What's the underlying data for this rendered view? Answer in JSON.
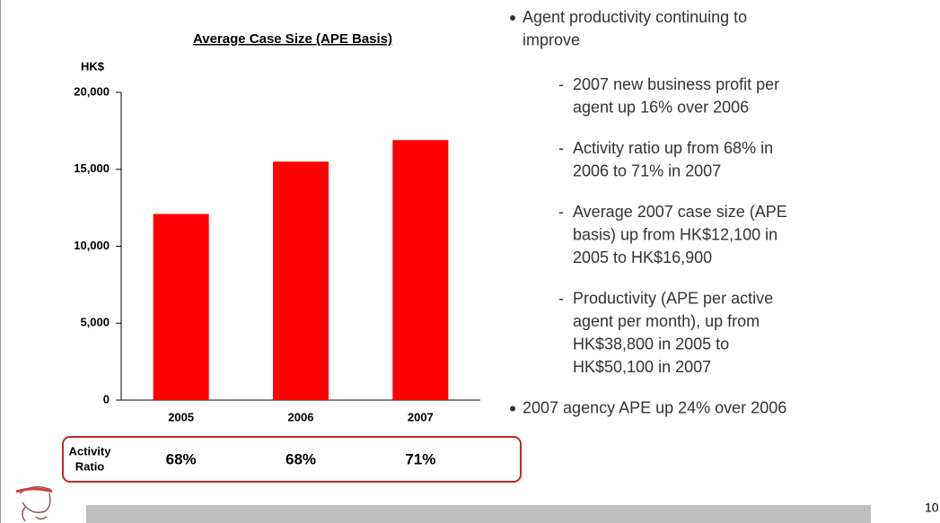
{
  "chart_data": {
    "type": "bar",
    "title": "Average Case Size (APE Basis)",
    "y_label": "HK$",
    "categories": [
      "2005",
      "2006",
      "2007"
    ],
    "values": [
      12100,
      15500,
      16900
    ],
    "color": "#ff0000",
    "ylim": [
      0,
      20000
    ],
    "yticks": [
      0,
      {
        "value": 5000,
        "label": "5,000"
      },
      {
        "value": 10000,
        "label": "10,000"
      },
      {
        "value": 15000,
        "label": "15,000"
      },
      {
        "value": 20000,
        "label": "20,000"
      }
    ]
  },
  "ratio_row": {
    "label": [
      "Activity",
      "Ratio"
    ],
    "cells": [
      "68%",
      "68%",
      "71%"
    ]
  },
  "bullets": [
    {
      "lines": [
        "Agent productivity continuing to",
        "improve"
      ],
      "sub": [
        [
          "2007 new business profit per",
          "agent up 16% over 2006"
        ],
        [
          "Activity ratio up from 68% in",
          "2006 to    71% in 2007"
        ],
        [
          "Average 2007 case size (APE",
          "basis) up from HK$12,100 in",
          "2005 to HK$16,900"
        ],
        [
          "Productivity (APE per active",
          "agent per month), up from",
          "HK$38,800 in 2005  to",
          "HK$50,100 in 2007"
        ]
      ]
    },
    {
      "lines": [
        "2007 agency APE up 24% over 2006"
      ],
      "sub": []
    }
  ],
  "page_number": "10"
}
